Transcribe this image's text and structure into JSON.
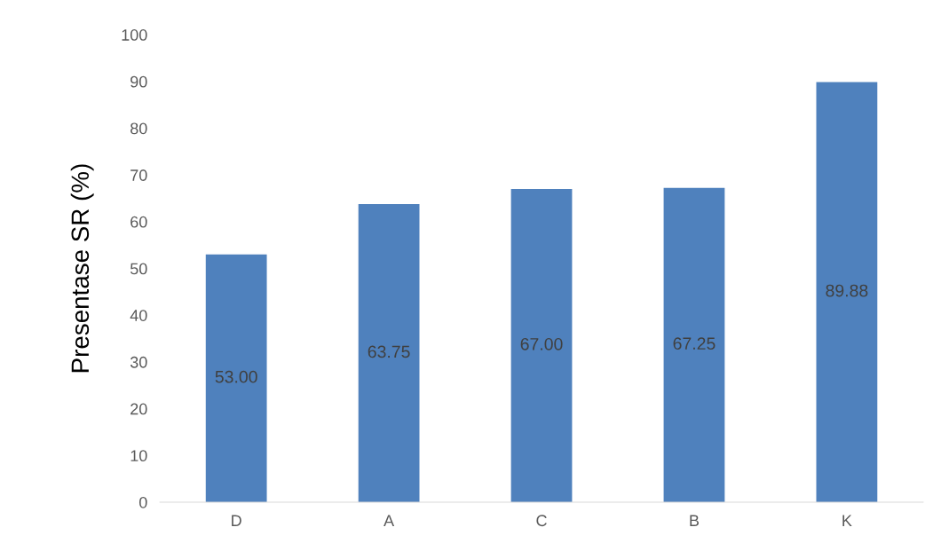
{
  "chart_data": {
    "type": "bar",
    "ylabel": "Presentase SR (%)",
    "categories": [
      "D",
      "A",
      "C",
      "B",
      "K"
    ],
    "values": [
      53.0,
      63.75,
      67.0,
      67.25,
      89.88
    ],
    "color": "#4f81bd",
    "ylim": [
      0,
      100
    ],
    "yticks": [
      0,
      10,
      20,
      30,
      40,
      50,
      60,
      70,
      80,
      90,
      100
    ],
    "value_labels": [
      "53.00",
      "63.75",
      "67.00",
      "67.25",
      "89.88"
    ]
  }
}
